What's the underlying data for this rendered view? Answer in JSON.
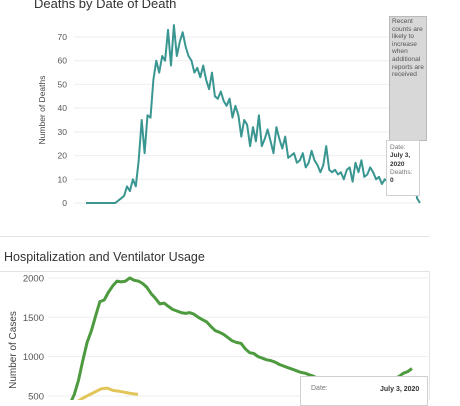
{
  "chart_data": [
    {
      "type": "line",
      "title": "Deaths by Date of Death",
      "ylabel": "Number of Deaths",
      "ylim": [
        0,
        75
      ],
      "yticks": [
        0,
        10,
        20,
        30,
        40,
        50,
        60,
        70
      ],
      "gridlines": true,
      "color": "#3a9691",
      "note": "Recent counts are likely to increase when additional reports are received",
      "tooltip": {
        "date_label": "Date:",
        "date_value": "July 3, 2020",
        "deaths_label": "Deaths:",
        "deaths_value": "0"
      },
      "values": [
        0,
        0,
        0,
        0,
        0,
        0,
        0,
        0,
        0,
        0,
        0,
        1,
        2,
        3,
        7,
        5,
        10,
        7,
        18,
        35,
        21,
        37,
        36,
        52,
        60,
        55,
        62,
        60,
        73,
        58,
        75,
        62,
        68,
        72,
        66,
        62,
        60,
        55,
        57,
        53,
        58,
        52,
        48,
        55,
        45,
        44,
        47,
        43,
        41,
        44,
        36,
        41,
        37,
        28,
        35,
        33,
        24,
        32,
        26,
        37,
        24,
        27,
        31,
        26,
        21,
        32,
        27,
        23,
        28,
        19,
        20,
        21,
        17,
        18,
        21,
        15,
        17,
        22,
        18,
        16,
        13,
        16,
        24,
        14,
        13,
        14,
        12,
        13,
        10,
        14,
        15,
        9,
        17,
        13,
        18,
        11,
        12,
        15,
        13,
        10,
        11,
        8,
        10,
        9,
        10,
        11,
        9,
        12,
        8,
        6,
        5,
        18,
        10,
        2,
        0
      ]
    },
    {
      "type": "line",
      "title": "Hospitalization and Ventilator Usage",
      "ylabel": "Number of Cases",
      "yticks": [
        500,
        1000,
        1500,
        2000
      ],
      "gridlines": true,
      "tooltip": {
        "date_label": "Date:",
        "date_value": "July 3, 2020"
      },
      "series": [
        {
          "color": "#4d9a3f",
          "values": [
            400,
            520,
            700,
            950,
            1180,
            1330,
            1520,
            1700,
            1720,
            1820,
            1900,
            1960,
            1950,
            1960,
            2000,
            1970,
            1960,
            1930,
            1880,
            1800,
            1740,
            1670,
            1680,
            1640,
            1600,
            1580,
            1560,
            1550,
            1560,
            1540,
            1500,
            1470,
            1440,
            1380,
            1330,
            1310,
            1280,
            1240,
            1200,
            1180,
            1170,
            1100,
            1050,
            1040,
            1000,
            980,
            960,
            950,
            930,
            900,
            880,
            860,
            840,
            820,
            800,
            790,
            770,
            750,
            720,
            700,
            690,
            700,
            690,
            680,
            670,
            660,
            660,
            650,
            650,
            640,
            640,
            650,
            640,
            660,
            650,
            700,
            720,
            750,
            790,
            810,
            850
          ]
        },
        {
          "color": "#e2c65a",
          "values": [
            380,
            420,
            470,
            510,
            550,
            590,
            600,
            570,
            560,
            545,
            530,
            520
          ]
        }
      ]
    }
  ]
}
